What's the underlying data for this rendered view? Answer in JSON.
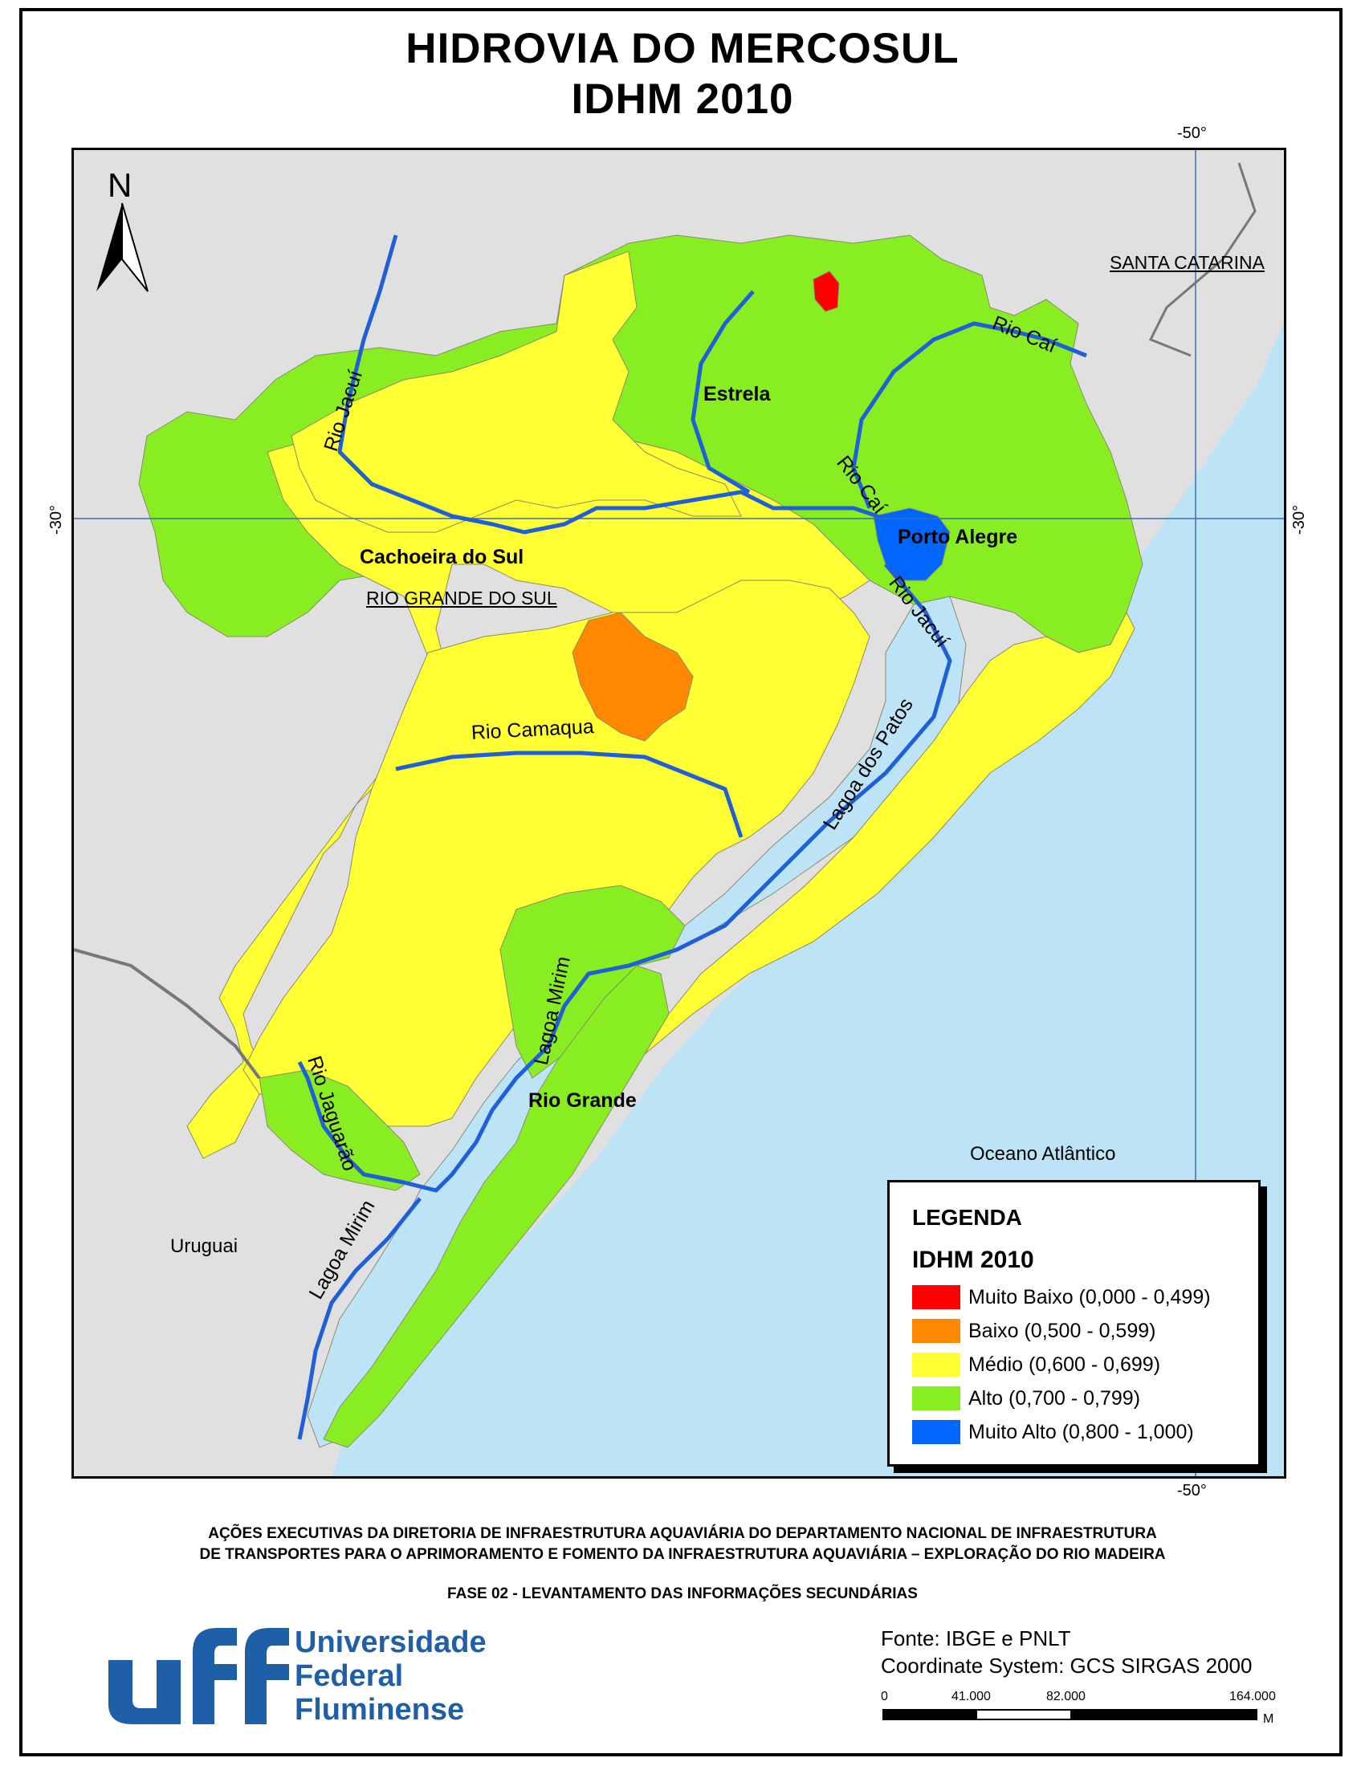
{
  "title": {
    "line1": "HIDROVIA DO MERCOSUL",
    "line2": "IDHM 2010"
  },
  "coordinates": {
    "top_lon": "-50°",
    "bottom_lon": "-50°",
    "left_lat": "-30°",
    "right_lat": "-30°"
  },
  "north_arrow": {
    "label": "N"
  },
  "places": {
    "cachoeira": "Cachoeira do Sul",
    "estrela": "Estrela",
    "porto_alegre": "Porto Alegre",
    "rio_grande_city": "Rio Grande",
    "rio_grande_do_sul": "RIO GRANDE DO SUL",
    "santa_catarina": "SANTA CATARINA",
    "uruguai": "Uruguai",
    "oceano": "Oceano Atlântico"
  },
  "rivers": {
    "jacui_north": "Rio Jacuí",
    "jacui_south": "Rio Jacuí",
    "cai_north": "Rio Caí",
    "cai_south": "Rio Caí",
    "camaqua": "Rio Camaqua",
    "patos": "Lagoa dos Patos",
    "mirim_north": "Lagoa Mirim",
    "mirim_south": "Lagoa Mirim",
    "jaguarao": "Rio Jaguarão"
  },
  "legend": {
    "heading": "LEGENDA",
    "subtitle": "IDHM 2010",
    "items": [
      {
        "label": "Muito Baixo (0,000 - 0,499)",
        "color": "#ff0000"
      },
      {
        "label": "Baixo (0,500 - 0,599)",
        "color": "#ff8800"
      },
      {
        "label": "Médio (0,600 - 0,699)",
        "color": "#ffff33"
      },
      {
        "label": "Alto (0,700 - 0,799)",
        "color": "#88ee22"
      },
      {
        "label": "Muito Alto (0,800 - 1,000)",
        "color": "#0066ff"
      }
    ]
  },
  "colors": {
    "ocean": "#bde3f7",
    "land_other": "#e0e0e0",
    "river": "#1f5fd8",
    "logo": "#1f5fa8"
  },
  "footer": {
    "line1": "AÇÕES EXECUTIVAS DA DIRETORIA DE INFRAESTRUTURA AQUAVIÁRIA DO DEPARTAMENTO NACIONAL DE INFRAESTRUTURA",
    "line2": "DE TRANSPORTES PARA O APRIMORAMENTO E FOMENTO DA INFRAESTRUTURA AQUAVIÁRIA – EXPLORAÇÃO DO RIO MADEIRA",
    "line3": "FASE 02 - LEVANTAMENTO DAS INFORMAÇÕES SECUNDÁRIAS"
  },
  "logo": {
    "mark": "uff",
    "line1": "Universidade",
    "line2": "Federal",
    "line3": "Fluminense"
  },
  "credits": {
    "source": "Fonte: IBGE e PNLT",
    "crs": "Coordinate System: GCS SIRGAS 2000"
  },
  "scale": {
    "ticks": [
      "0",
      "41.000",
      "82.000",
      "164.000"
    ],
    "unit": "M"
  }
}
